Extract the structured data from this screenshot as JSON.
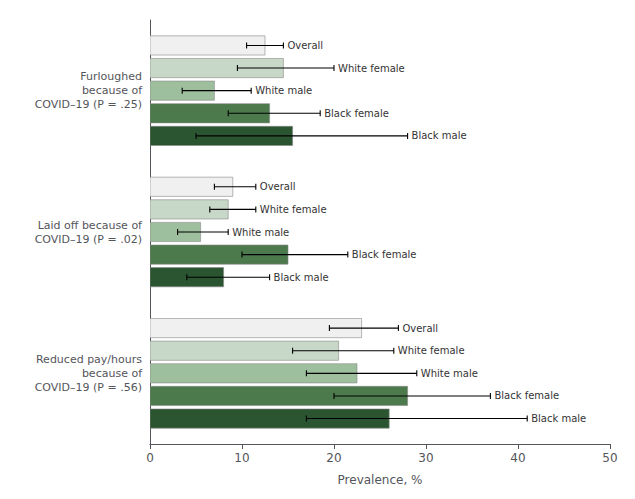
{
  "chart_data": {
    "type": "bar",
    "orientation": "horizontal",
    "xlabel": "Prevalence, %",
    "categories": [
      "Furloughed\nbecause of\nCOVID–19 (P = .25)",
      "Laid off because of\nCOVID–19 (P = .02)",
      "Reduced pay/hours\nbecause of\nCOVID–19 (P = .56)"
    ],
    "series": [
      {
        "name": "Overall",
        "color": "#f0f0f0",
        "values": [
          12.5,
          9.0,
          23.0
        ],
        "ci_low": [
          10.5,
          7.0,
          19.5
        ],
        "ci_high": [
          14.5,
          11.5,
          27.0
        ]
      },
      {
        "name": "White female",
        "color": "#c8d8c8",
        "values": [
          14.5,
          8.5,
          20.5
        ],
        "ci_low": [
          9.5,
          6.5,
          15.5
        ],
        "ci_high": [
          20.0,
          11.5,
          26.5
        ]
      },
      {
        "name": "White male",
        "color": "#9dbf9d",
        "values": [
          7.0,
          5.5,
          22.5
        ],
        "ci_low": [
          3.5,
          3.0,
          17.0
        ],
        "ci_high": [
          11.0,
          8.5,
          29.0
        ]
      },
      {
        "name": "Black female",
        "color": "#4d7a4d",
        "values": [
          13.0,
          15.0,
          28.0
        ],
        "ci_low": [
          8.5,
          10.0,
          20.0
        ],
        "ci_high": [
          18.5,
          21.5,
          37.0
        ]
      },
      {
        "name": "Black male",
        "color": "#2a5530",
        "values": [
          15.5,
          8.0,
          26.0
        ],
        "ci_low": [
          5.0,
          4.0,
          17.0
        ],
        "ci_high": [
          28.0,
          13.0,
          41.0
        ]
      }
    ],
    "xlim": [
      0,
      50
    ],
    "xticks": [
      0,
      10,
      20,
      30,
      40,
      50
    ],
    "grid": false
  }
}
